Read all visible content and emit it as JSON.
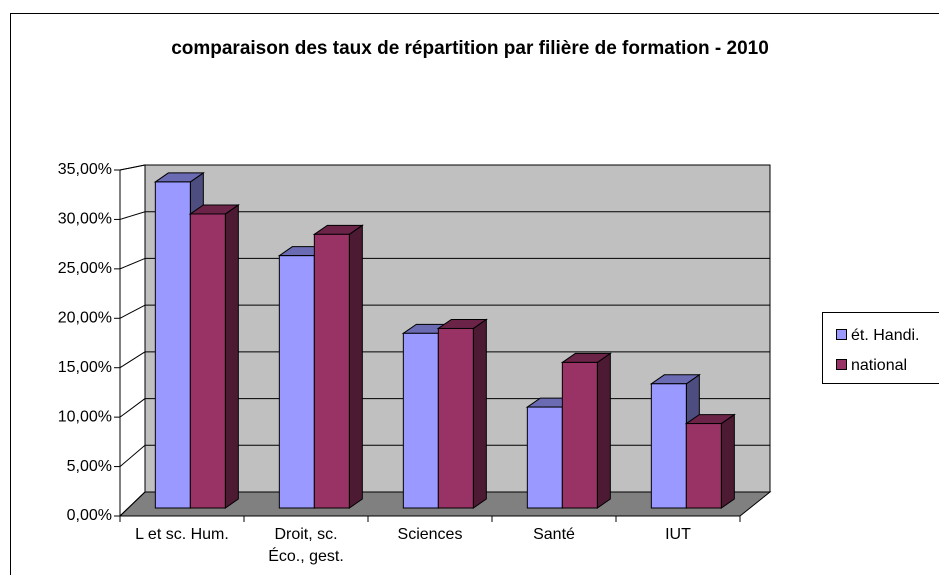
{
  "chart_data": {
    "type": "bar3d",
    "title": "comparaison des taux de répartition par filière de formation - 2010",
    "categories": [
      "L et sc. Hum.",
      "Droit, sc. Éco., gest.",
      "Sciences",
      "Santé",
      "IUT"
    ],
    "series": [
      {
        "name": "ét. Handi.",
        "color": "#9999ff",
        "values": [
          33.6,
          26.0,
          18.0,
          10.4,
          12.8
        ]
      },
      {
        "name": "national",
        "color": "#993366",
        "values": [
          30.3,
          28.2,
          18.5,
          15.0,
          8.7
        ]
      }
    ],
    "ylim": [
      0,
      35
    ],
    "yticks": [
      {
        "value": 0,
        "label": "0,00%"
      },
      {
        "value": 5,
        "label": "5,00%"
      },
      {
        "value": 10,
        "label": "10,00%"
      },
      {
        "value": 15,
        "label": "15,00%"
      },
      {
        "value": 20,
        "label": "20,00%"
      },
      {
        "value": 25,
        "label": "25,00%"
      },
      {
        "value": 30,
        "label": "30,00%"
      },
      {
        "value": 35,
        "label": "35,00%"
      }
    ],
    "grid": true,
    "legend": "right"
  }
}
